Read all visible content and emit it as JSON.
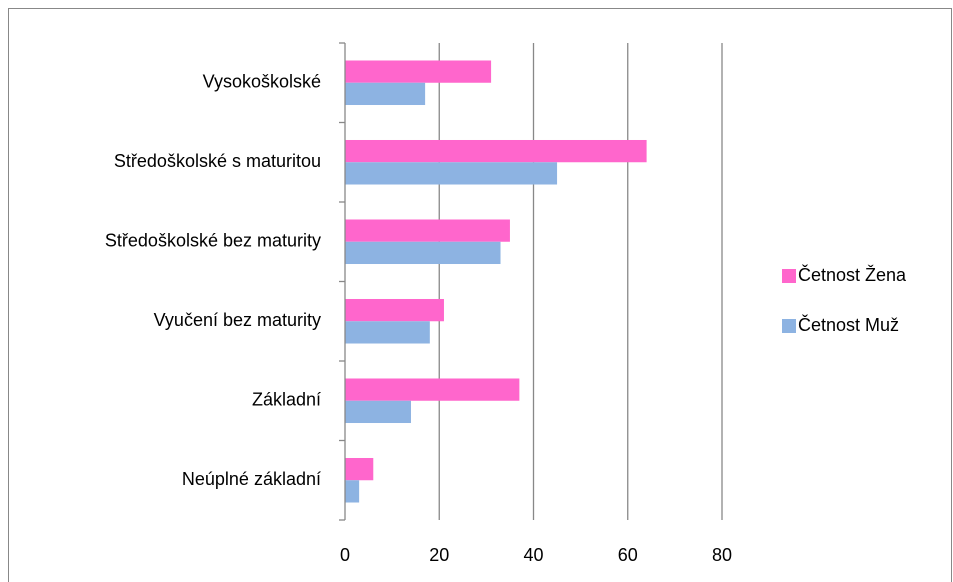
{
  "chart_data": {
    "type": "barh",
    "categories": [
      "Vysokoškolské",
      "Středoškolské s maturitou",
      "Středoškolské bez maturity",
      "Vyučení bez maturity",
      "Základní",
      "Neúplné základní"
    ],
    "series": [
      {
        "name": "Četnost Žena",
        "color": "#ff66cc",
        "values": [
          31,
          64,
          35,
          21,
          37,
          6
        ]
      },
      {
        "name": "Četnost Muž",
        "color": "#8db3e2",
        "values": [
          17,
          45,
          33,
          18,
          14,
          3
        ]
      }
    ],
    "xlim": [
      0,
      80
    ],
    "xticks": [
      0,
      20,
      40,
      60,
      80
    ],
    "grid": true,
    "legend": "right"
  }
}
